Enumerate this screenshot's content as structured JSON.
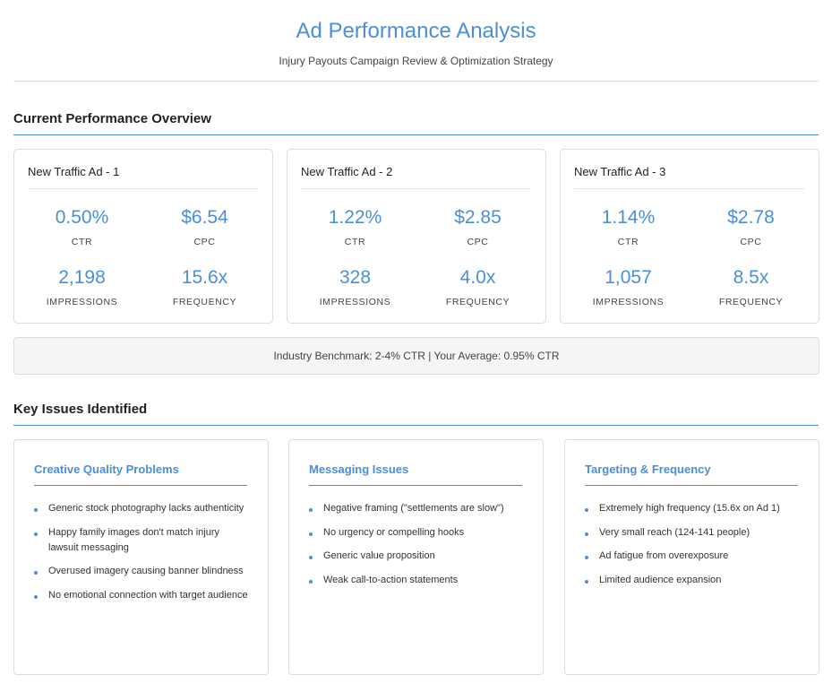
{
  "header": {
    "title": "Ad Performance Analysis",
    "subtitle": "Injury Payouts Campaign Review & Optimization Strategy"
  },
  "performance": {
    "section_title": "Current Performance Overview",
    "ads": [
      {
        "name": "New Traffic Ad - 1",
        "metrics": [
          {
            "value": "0.50%",
            "label": "CTR"
          },
          {
            "value": "$6.54",
            "label": "CPC"
          },
          {
            "value": "2,198",
            "label": "IMPRESSIONS"
          },
          {
            "value": "15.6x",
            "label": "FREQUENCY"
          }
        ]
      },
      {
        "name": "New Traffic Ad - 2",
        "metrics": [
          {
            "value": "1.22%",
            "label": "CTR"
          },
          {
            "value": "$2.85",
            "label": "CPC"
          },
          {
            "value": "328",
            "label": "IMPRESSIONS"
          },
          {
            "value": "4.0x",
            "label": "FREQUENCY"
          }
        ]
      },
      {
        "name": "New Traffic Ad - 3",
        "metrics": [
          {
            "value": "1.14%",
            "label": "CTR"
          },
          {
            "value": "$2.78",
            "label": "CPC"
          },
          {
            "value": "1,057",
            "label": "IMPRESSIONS"
          },
          {
            "value": "8.5x",
            "label": "FREQUENCY"
          }
        ]
      }
    ],
    "benchmark": "Industry Benchmark: 2-4% CTR | Your Average: 0.95% CTR"
  },
  "issues": {
    "section_title": "Key Issues Identified",
    "groups": [
      {
        "title": "Creative Quality Problems",
        "items": [
          "Generic stock photography lacks authenticity",
          "Happy family images don't match injury lawsuit messaging",
          "Overused imagery causing banner blindness",
          "No emotional connection with target audience"
        ]
      },
      {
        "title": "Messaging Issues",
        "items": [
          "Negative framing (\"settlements are slow\")",
          "No urgency or compelling hooks",
          "Generic value proposition",
          "Weak call-to-action statements"
        ]
      },
      {
        "title": "Targeting & Frequency",
        "items": [
          "Extremely high frequency (15.6x on Ad 1)",
          "Very small reach (124-141 people)",
          "Ad fatigue from overexposure",
          "Limited audience expansion"
        ]
      }
    ]
  },
  "colors": {
    "accent": "#4a8fd9",
    "border": "#dcdcdc",
    "benchmark_bg": "#f5f5f5"
  }
}
